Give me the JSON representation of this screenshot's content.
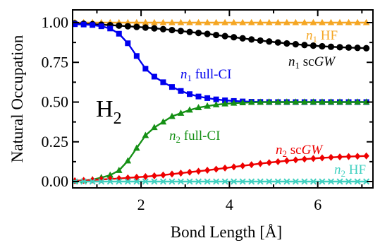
{
  "chart_data": {
    "type": "line",
    "title": "",
    "xlabel": "Bond Length [Å]",
    "ylabel": "Natural Occupation",
    "xlim": [
      0.45,
      7.25
    ],
    "ylim": [
      -0.04,
      1.08
    ],
    "xticks": [
      2,
      4,
      6
    ],
    "yticks": [
      0.0,
      0.25,
      0.5,
      0.75,
      1.0
    ],
    "ytick_labels": [
      "0.00",
      "0.25",
      "0.50",
      "0.75",
      "1.00"
    ],
    "inset_label": {
      "base": "H",
      "sub": "2"
    },
    "grid": false,
    "legend": "none (inline series labels)",
    "series": [
      {
        "name": "n1 HF",
        "label_parts": {
          "var": "n",
          "sub": "1",
          "rest": " HF",
          "italic_rest": ""
        },
        "color": "#f5a623",
        "marker": "triangle",
        "x": [
          0.5,
          0.7,
          0.9,
          1.1,
          1.3,
          1.5,
          1.7,
          1.9,
          2.1,
          2.3,
          2.5,
          2.7,
          2.9,
          3.1,
          3.3,
          3.5,
          3.7,
          3.9,
          4.1,
          4.3,
          4.5,
          4.7,
          4.9,
          5.1,
          5.3,
          5.5,
          5.7,
          5.9,
          6.1,
          6.3,
          6.5,
          6.7,
          6.9,
          7.1
        ],
        "y": [
          1.0,
          1.0,
          1.0,
          1.0,
          1.0,
          1.0,
          1.0,
          1.0,
          1.0,
          1.0,
          1.0,
          1.0,
          1.0,
          1.0,
          1.0,
          1.0,
          1.0,
          1.0,
          1.0,
          1.0,
          1.0,
          1.0,
          1.0,
          1.0,
          1.0,
          1.0,
          1.0,
          1.0,
          1.0,
          1.0,
          1.0,
          1.0,
          1.0,
          1.0
        ]
      },
      {
        "name": "n1 scGW",
        "label_parts": {
          "var": "n",
          "sub": "1",
          "rest": " sc",
          "italic_rest": "GW"
        },
        "color": "#000000",
        "marker": "circle",
        "x": [
          0.5,
          0.7,
          0.9,
          1.1,
          1.3,
          1.5,
          1.7,
          1.9,
          2.1,
          2.3,
          2.5,
          2.7,
          2.9,
          3.1,
          3.3,
          3.5,
          3.7,
          3.9,
          4.1,
          4.3,
          4.5,
          4.7,
          4.9,
          5.1,
          5.3,
          5.5,
          5.7,
          5.9,
          6.1,
          6.3,
          6.5,
          6.7,
          6.9,
          7.1
        ],
        "y": [
          0.995,
          0.993,
          0.99,
          0.987,
          0.984,
          0.981,
          0.977,
          0.973,
          0.969,
          0.964,
          0.959,
          0.953,
          0.947,
          0.941,
          0.935,
          0.929,
          0.922,
          0.915,
          0.908,
          0.901,
          0.894,
          0.887,
          0.881,
          0.875,
          0.869,
          0.864,
          0.859,
          0.855,
          0.851,
          0.848,
          0.845,
          0.843,
          0.841,
          0.839
        ]
      },
      {
        "name": "n1 full-CI",
        "label_parts": {
          "var": "n",
          "sub": "1",
          "rest": " full-CI",
          "italic_rest": ""
        },
        "color": "#0000ee",
        "marker": "square",
        "x": [
          0.5,
          0.7,
          0.9,
          1.1,
          1.3,
          1.5,
          1.7,
          1.9,
          2.1,
          2.3,
          2.5,
          2.7,
          2.9,
          3.1,
          3.3,
          3.5,
          3.7,
          3.9,
          4.1,
          4.3,
          4.5,
          4.7,
          4.9,
          5.1,
          5.3,
          5.5,
          5.7,
          5.9,
          6.1,
          6.3,
          6.5,
          6.7,
          6.9,
          7.1
        ],
        "y": [
          0.99,
          0.988,
          0.985,
          0.977,
          0.963,
          0.93,
          0.87,
          0.79,
          0.71,
          0.66,
          0.625,
          0.595,
          0.57,
          0.55,
          0.535,
          0.525,
          0.517,
          0.511,
          0.507,
          0.504,
          0.502,
          0.501,
          0.5,
          0.5,
          0.5,
          0.5,
          0.5,
          0.5,
          0.5,
          0.5,
          0.5,
          0.5,
          0.5,
          0.5
        ]
      },
      {
        "name": "n2 full-CI",
        "label_parts": {
          "var": "n",
          "sub": "2",
          "rest": " full-CI",
          "italic_rest": ""
        },
        "color": "#159015",
        "marker": "triangle",
        "x": [
          0.5,
          0.7,
          0.9,
          1.1,
          1.3,
          1.5,
          1.7,
          1.9,
          2.1,
          2.3,
          2.5,
          2.7,
          2.9,
          3.1,
          3.3,
          3.5,
          3.7,
          3.9,
          4.1,
          4.3,
          4.5,
          4.7,
          4.9,
          5.1,
          5.3,
          5.5,
          5.7,
          5.9,
          6.1,
          6.3,
          6.5,
          6.7,
          6.9,
          7.1
        ],
        "y": [
          0.003,
          0.006,
          0.012,
          0.025,
          0.04,
          0.07,
          0.13,
          0.21,
          0.29,
          0.34,
          0.375,
          0.41,
          0.43,
          0.45,
          0.465,
          0.475,
          0.483,
          0.489,
          0.493,
          0.496,
          0.498,
          0.499,
          0.5,
          0.5,
          0.5,
          0.5,
          0.5,
          0.5,
          0.5,
          0.5,
          0.5,
          0.5,
          0.5,
          0.5
        ]
      },
      {
        "name": "n2 scGW",
        "label_parts": {
          "var": "n",
          "sub": "2",
          "rest": " sc",
          "italic_rest": "GW"
        },
        "color": "#ee0000",
        "marker": "diamond",
        "x": [
          0.5,
          0.7,
          0.9,
          1.1,
          1.3,
          1.5,
          1.7,
          1.9,
          2.1,
          2.3,
          2.5,
          2.7,
          2.9,
          3.1,
          3.3,
          3.5,
          3.7,
          3.9,
          4.1,
          4.3,
          4.5,
          4.7,
          4.9,
          5.1,
          5.3,
          5.5,
          5.7,
          5.9,
          6.1,
          6.3,
          6.5,
          6.7,
          6.9,
          7.1
        ],
        "y": [
          0.005,
          0.007,
          0.01,
          0.013,
          0.016,
          0.019,
          0.023,
          0.027,
          0.031,
          0.036,
          0.041,
          0.047,
          0.053,
          0.059,
          0.065,
          0.071,
          0.078,
          0.085,
          0.092,
          0.099,
          0.106,
          0.113,
          0.119,
          0.125,
          0.131,
          0.136,
          0.141,
          0.145,
          0.149,
          0.152,
          0.155,
          0.157,
          0.159,
          0.161
        ]
      },
      {
        "name": "n2 HF",
        "label_parts": {
          "var": "n",
          "sub": "2",
          "rest": " HF",
          "italic_rest": ""
        },
        "color": "#40d0c0",
        "marker": "x",
        "x": [
          0.5,
          0.7,
          0.9,
          1.1,
          1.3,
          1.5,
          1.7,
          1.9,
          2.1,
          2.3,
          2.5,
          2.7,
          2.9,
          3.1,
          3.3,
          3.5,
          3.7,
          3.9,
          4.1,
          4.3,
          4.5,
          4.7,
          4.9,
          5.1,
          5.3,
          5.5,
          5.7,
          5.9,
          6.1,
          6.3,
          6.5,
          6.7,
          6.9,
          7.1
        ],
        "y": [
          0.0,
          0.0,
          0.0,
          0.0,
          0.0,
          0.0,
          0.0,
          0.0,
          0.0,
          0.0,
          0.0,
          0.0,
          0.0,
          0.0,
          0.0,
          0.0,
          0.0,
          0.0,
          0.0,
          0.0,
          0.0,
          0.0,
          0.0,
          0.0,
          0.0,
          0.0,
          0.0,
          0.0,
          0.0,
          0.0,
          0.0,
          0.0,
          0.0,
          0.0
        ]
      }
    ]
  }
}
